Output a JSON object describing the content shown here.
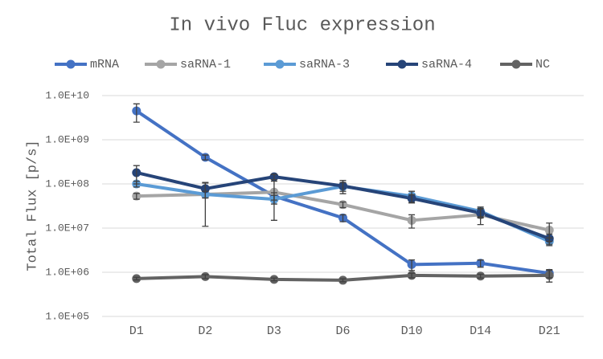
{
  "chart_data": {
    "type": "line",
    "title": "In vivo Fluc expression",
    "y_label": "Total Flux [p/s]",
    "categories": [
      "D1",
      "D2",
      "D3",
      "D6",
      "D10",
      "D14",
      "D21"
    ],
    "log_scale": true,
    "grid": true,
    "legend": "top",
    "ylim": [
      100000,
      10000000000
    ],
    "yticks": [
      {
        "value": 100000,
        "label": "1.0E+05"
      },
      {
        "value": 1000000,
        "label": "1.0E+06"
      },
      {
        "value": 10000000,
        "label": "1.0E+07"
      },
      {
        "value": 100000000,
        "label": "1.0E+08"
      },
      {
        "value": 1000000000,
        "label": "1.0E+09"
      },
      {
        "value": 10000000000,
        "label": "1.0E+10"
      }
    ],
    "series": [
      {
        "name": "mRNA",
        "color": "#4472c4",
        "values": [
          4500000000,
          400000000,
          53000000,
          17000000,
          1500000,
          1600000,
          950000
        ],
        "errors": [
          2000000000,
          50000000,
          10000000,
          3000000,
          400000,
          300000,
          200000
        ]
      },
      {
        "name": "saRNA-1",
        "color": "#a5a5a5",
        "values": [
          53000000,
          58000000,
          65000000,
          34000000,
          15000000,
          20000000,
          9000000
        ],
        "errors": [
          8000000,
          47000000,
          50000000,
          5000000,
          5000000,
          8000000,
          4000000
        ]
      },
      {
        "name": "saRNA-3",
        "color": "#5b9bd5",
        "values": [
          100000000,
          58000000,
          45000000,
          88000000,
          53000000,
          24000000,
          5000000
        ],
        "errors": [
          15000000,
          10000000,
          10000000,
          20000000,
          15000000,
          6000000,
          1000000
        ]
      },
      {
        "name": "saRNA-4",
        "color": "#264478",
        "values": [
          180000000,
          78000000,
          145000000,
          90000000,
          47000000,
          22000000,
          5800000
        ],
        "errors": [
          80000000,
          30000000,
          20000000,
          30000000,
          10000000,
          5000000,
          1500000
        ]
      },
      {
        "name": "NC",
        "color": "#636363",
        "values": [
          720000,
          800000,
          690000,
          660000,
          850000,
          820000,
          850000
        ],
        "errors": [
          50000,
          80000,
          50000,
          50000,
          100000,
          80000,
          250000
        ]
      }
    ]
  }
}
